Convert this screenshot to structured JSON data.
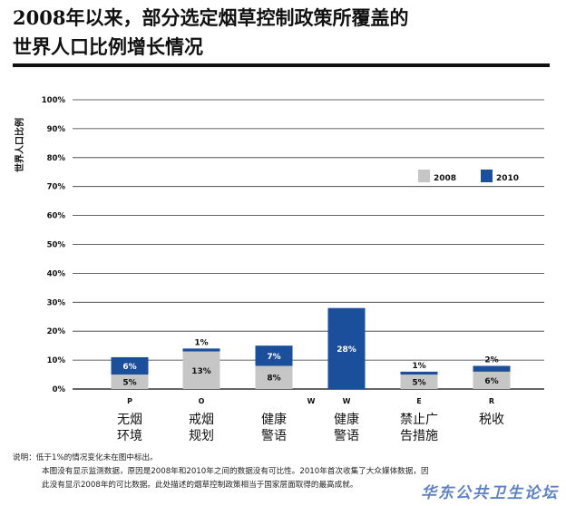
{
  "title_line1": "2008年以来，部分选定烟草控制政策所覆盖的",
  "title_line2": "世界人口比例增长情况",
  "colors": {
    "y2008": "#c6c6c6",
    "y2010": "#1b4f9c",
    "axis": "#222222",
    "grid": "#333333",
    "text": "#111111"
  },
  "chart_data": {
    "type": "bar",
    "stacked": true,
    "ylabel": "世界人口比例",
    "yticks": [
      "0%",
      "10%",
      "20%",
      "30%",
      "40%",
      "50%",
      "60%",
      "70%",
      "80%",
      "90%",
      "100%"
    ],
    "ylim": [
      0,
      100
    ],
    "grid": true,
    "legend_position": "top-right",
    "letters": [
      "P",
      "O",
      "",
      "W",
      "E",
      "R"
    ],
    "letter_w_label": "W",
    "categories": [
      [
        "无烟",
        "环境"
      ],
      [
        "戒烟",
        "规划"
      ],
      [
        "健康",
        "警语"
      ],
      [
        "健康",
        "警语"
      ],
      [
        "禁止广",
        "告措施"
      ],
      [
        "税收"
      ]
    ],
    "series": [
      {
        "name": "2008",
        "values": [
          5,
          13,
          8,
          0,
          5,
          6
        ],
        "labels": [
          "5%",
          "13%",
          "8%",
          "",
          "5%",
          "6%"
        ]
      },
      {
        "name": "2010",
        "values": [
          6,
          1,
          7,
          28,
          1,
          2
        ],
        "labels": [
          "6%",
          "1%",
          "7%",
          "28%",
          "1%",
          "2%"
        ]
      }
    ]
  },
  "notes": {
    "label": "说明：",
    "line1": "低于1%的情况变化未在图中标出。",
    "line2": "本图没有显示监测数据，原因是2008年和2010年之间的数据没有可比性。2010年首次收集了大众媒体数据，因",
    "line3": "此没有显示2008年的可比数据。此处描述的烟草控制政策相当于国家层面取得的最高成就。"
  },
  "watermark": "华东公共卫生论坛"
}
